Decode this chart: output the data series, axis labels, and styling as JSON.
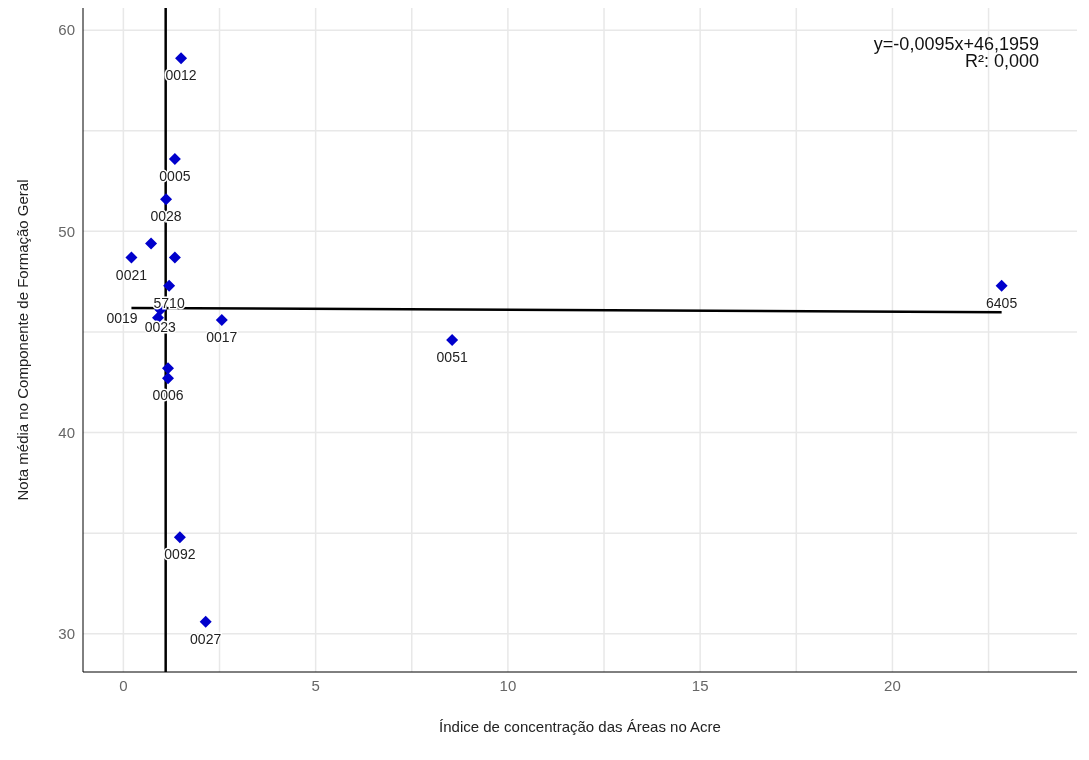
{
  "chart_data": {
    "type": "scatter",
    "xlabel": "Índice de concentração das Áreas no Acre",
    "ylabel": "Nota média no Componente de Formação Geral",
    "annotations": [
      "y=-0,0095x+46,1959",
      "R²: 0,000",
      {
        "text": "0012",
        "x": 1.5,
        "y": 58.6
      },
      {
        "text": "0005",
        "x": 1.34,
        "y": 53.6
      },
      {
        "text": "0028",
        "x": 1.11,
        "y": 51.6
      },
      {
        "text": "0021",
        "x": 0.21,
        "y": 48.7
      },
      {
        "text": "5710",
        "x": 1.19,
        "y": 47.3
      },
      {
        "text": "0023",
        "x": 0.96,
        "y": 46.1
      },
      {
        "text": "0019",
        "x": 0.9,
        "y": 45.7
      },
      {
        "text": "0017",
        "x": 2.56,
        "y": 45.6
      },
      {
        "text": "0006",
        "x": 1.16,
        "y": 42.7
      },
      {
        "text": "0092",
        "x": 1.47,
        "y": 34.8
      },
      {
        "text": "0027",
        "x": 2.14,
        "y": 30.6
      },
      {
        "text": "0051",
        "x": 8.55,
        "y": 44.6
      },
      {
        "text": "6405",
        "x": 22.84,
        "y": 47.3
      }
    ],
    "series": [
      {
        "type": "scatter",
        "color": "#0000cc",
        "marker": "diamond",
        "x": [
          1.5,
          1.34,
          1.11,
          0.72,
          0.21,
          1.34,
          1.19,
          0.96,
          0.9,
          2.56,
          1.16,
          1.16,
          1.47,
          2.14,
          8.55,
          22.84
        ],
        "values": [
          58.6,
          53.6,
          51.6,
          49.4,
          48.7,
          48.7,
          47.3,
          46.1,
          45.7,
          45.6,
          43.2,
          42.7,
          34.8,
          30.6,
          44.6,
          47.3
        ]
      },
      {
        "type": "line",
        "color": "#000000",
        "marker": "none",
        "x": [
          0.21,
          22.84
        ],
        "values": [
          46.19,
          45.98
        ]
      }
    ],
    "ref_lines": [
      {
        "axis": "x",
        "value": 1.1,
        "color": "#000000"
      }
    ],
    "xlim": [
      -1.05,
      24.8
    ],
    "ylim": [
      28.1,
      61.1
    ],
    "xticks": [
      0,
      {
        "value": 2.5,
        "label": null
      },
      5,
      {
        "value": 7.5,
        "label": null
      },
      10,
      {
        "value": 12.5,
        "label": null
      },
      15,
      {
        "value": 17.5,
        "label": null
      },
      20,
      {
        "value": 22.5,
        "label": null
      }
    ],
    "yticks": [
      30,
      {
        "value": 35,
        "label": null
      },
      40,
      {
        "value": 45,
        "label": null
      },
      50,
      {
        "value": 55,
        "label": null
      },
      60
    ],
    "grid": true,
    "legend": false
  }
}
